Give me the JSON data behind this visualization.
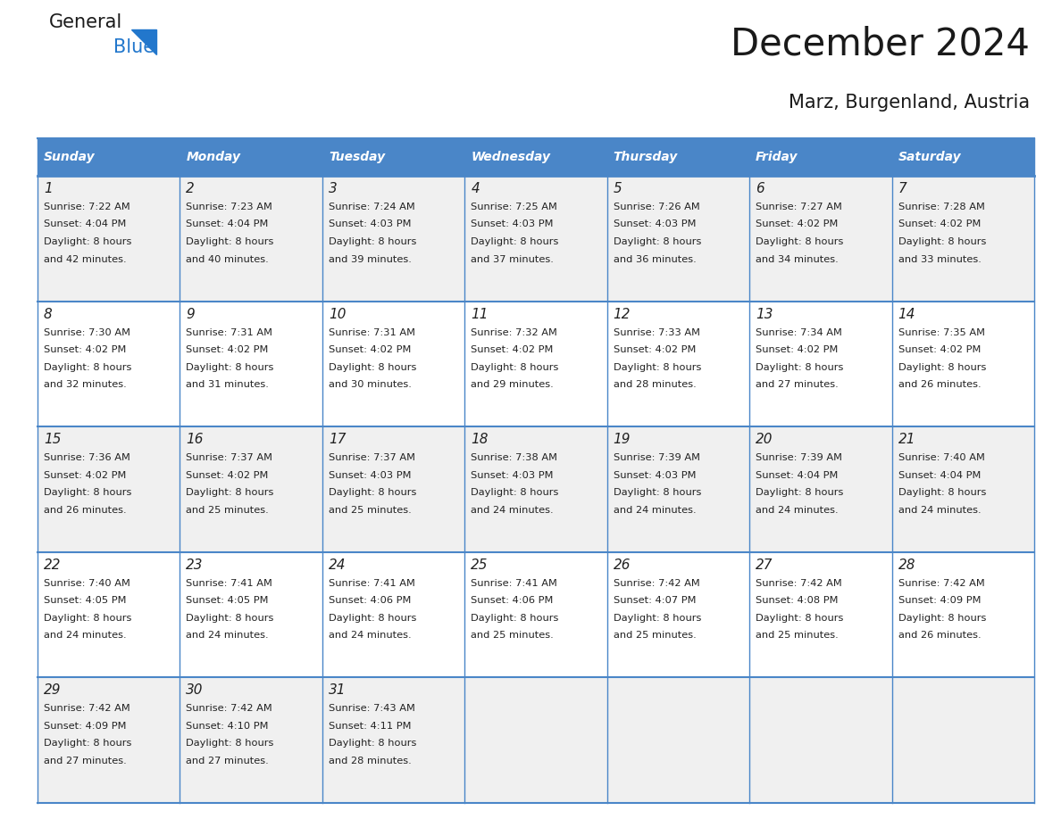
{
  "title": "December 2024",
  "subtitle": "Marz, Burgenland, Austria",
  "header_color": "#4a86c8",
  "header_text_color": "#ffffff",
  "cell_bg_even": "#f0f0f0",
  "cell_bg_odd": "#ffffff",
  "border_color": "#4a86c8",
  "text_color": "#222222",
  "days_of_week": [
    "Sunday",
    "Monday",
    "Tuesday",
    "Wednesday",
    "Thursday",
    "Friday",
    "Saturday"
  ],
  "weeks": [
    [
      {
        "day": 1,
        "sunrise": "7:22 AM",
        "sunset": "4:04 PM",
        "minutes": "42"
      },
      {
        "day": 2,
        "sunrise": "7:23 AM",
        "sunset": "4:04 PM",
        "minutes": "40"
      },
      {
        "day": 3,
        "sunrise": "7:24 AM",
        "sunset": "4:03 PM",
        "minutes": "39"
      },
      {
        "day": 4,
        "sunrise": "7:25 AM",
        "sunset": "4:03 PM",
        "minutes": "37"
      },
      {
        "day": 5,
        "sunrise": "7:26 AM",
        "sunset": "4:03 PM",
        "minutes": "36"
      },
      {
        "day": 6,
        "sunrise": "7:27 AM",
        "sunset": "4:02 PM",
        "minutes": "34"
      },
      {
        "day": 7,
        "sunrise": "7:28 AM",
        "sunset": "4:02 PM",
        "minutes": "33"
      }
    ],
    [
      {
        "day": 8,
        "sunrise": "7:30 AM",
        "sunset": "4:02 PM",
        "minutes": "32"
      },
      {
        "day": 9,
        "sunrise": "7:31 AM",
        "sunset": "4:02 PM",
        "minutes": "31"
      },
      {
        "day": 10,
        "sunrise": "7:31 AM",
        "sunset": "4:02 PM",
        "minutes": "30"
      },
      {
        "day": 11,
        "sunrise": "7:32 AM",
        "sunset": "4:02 PM",
        "minutes": "29"
      },
      {
        "day": 12,
        "sunrise": "7:33 AM",
        "sunset": "4:02 PM",
        "minutes": "28"
      },
      {
        "day": 13,
        "sunrise": "7:34 AM",
        "sunset": "4:02 PM",
        "minutes": "27"
      },
      {
        "day": 14,
        "sunrise": "7:35 AM",
        "sunset": "4:02 PM",
        "minutes": "26"
      }
    ],
    [
      {
        "day": 15,
        "sunrise": "7:36 AM",
        "sunset": "4:02 PM",
        "minutes": "26"
      },
      {
        "day": 16,
        "sunrise": "7:37 AM",
        "sunset": "4:02 PM",
        "minutes": "25"
      },
      {
        "day": 17,
        "sunrise": "7:37 AM",
        "sunset": "4:03 PM",
        "minutes": "25"
      },
      {
        "day": 18,
        "sunrise": "7:38 AM",
        "sunset": "4:03 PM",
        "minutes": "24"
      },
      {
        "day": 19,
        "sunrise": "7:39 AM",
        "sunset": "4:03 PM",
        "minutes": "24"
      },
      {
        "day": 20,
        "sunrise": "7:39 AM",
        "sunset": "4:04 PM",
        "minutes": "24"
      },
      {
        "day": 21,
        "sunrise": "7:40 AM",
        "sunset": "4:04 PM",
        "minutes": "24"
      }
    ],
    [
      {
        "day": 22,
        "sunrise": "7:40 AM",
        "sunset": "4:05 PM",
        "minutes": "24"
      },
      {
        "day": 23,
        "sunrise": "7:41 AM",
        "sunset": "4:05 PM",
        "minutes": "24"
      },
      {
        "day": 24,
        "sunrise": "7:41 AM",
        "sunset": "4:06 PM",
        "minutes": "24"
      },
      {
        "day": 25,
        "sunrise": "7:41 AM",
        "sunset": "4:06 PM",
        "minutes": "25"
      },
      {
        "day": 26,
        "sunrise": "7:42 AM",
        "sunset": "4:07 PM",
        "minutes": "25"
      },
      {
        "day": 27,
        "sunrise": "7:42 AM",
        "sunset": "4:08 PM",
        "minutes": "25"
      },
      {
        "day": 28,
        "sunrise": "7:42 AM",
        "sunset": "4:09 PM",
        "minutes": "26"
      }
    ],
    [
      {
        "day": 29,
        "sunrise": "7:42 AM",
        "sunset": "4:09 PM",
        "minutes": "27"
      },
      {
        "day": 30,
        "sunrise": "7:42 AM",
        "sunset": "4:10 PM",
        "minutes": "27"
      },
      {
        "day": 31,
        "sunrise": "7:43 AM",
        "sunset": "4:11 PM",
        "minutes": "28"
      },
      null,
      null,
      null,
      null
    ]
  ],
  "fig_width": 11.88,
  "fig_height": 9.18,
  "dpi": 100
}
